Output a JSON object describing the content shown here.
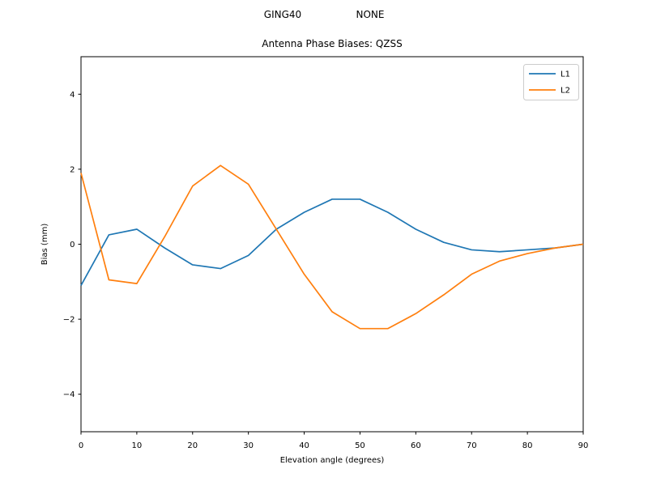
{
  "header": {
    "suptitle_left": "GING40",
    "suptitle_right": "NONE"
  },
  "chart_data": {
    "type": "line",
    "title": "Antenna Phase Biases: QZSS",
    "xlabel": "Elevation angle (degrees)",
    "ylabel": "Bias (mm)",
    "xlim": [
      0,
      90
    ],
    "ylim": [
      -5,
      5
    ],
    "xticks": [
      0,
      10,
      20,
      30,
      40,
      50,
      60,
      70,
      80,
      90
    ],
    "xtick_labels": [
      "0",
      "10",
      "20",
      "30",
      "40",
      "50",
      "60",
      "70",
      "80",
      "90"
    ],
    "yticks": [
      -4,
      -2,
      0,
      2,
      4
    ],
    "ytick_labels": [
      "−4",
      "−2",
      "0",
      "2",
      "4"
    ],
    "grid": false,
    "legend_position": "upper right",
    "x": [
      0,
      5,
      10,
      15,
      20,
      25,
      30,
      35,
      40,
      45,
      50,
      55,
      60,
      65,
      70,
      75,
      80,
      85,
      90
    ],
    "series": [
      {
        "name": "L1",
        "color": "#1f77b4",
        "values": [
          -1.1,
          0.25,
          0.4,
          -0.1,
          -0.55,
          -0.65,
          -0.3,
          0.4,
          0.85,
          1.2,
          1.2,
          0.85,
          0.4,
          0.05,
          -0.15,
          -0.2,
          -0.15,
          -0.1,
          0.0
        ]
      },
      {
        "name": "L2",
        "color": "#ff7f0e",
        "values": [
          1.9,
          -0.95,
          -1.05,
          0.2,
          1.55,
          2.1,
          1.6,
          0.4,
          -0.8,
          -1.8,
          -2.25,
          -2.25,
          -1.85,
          -1.35,
          -0.8,
          -0.45,
          -0.25,
          -0.1,
          0.0
        ]
      }
    ],
    "frame_color": "#000000",
    "legend_border_color": "#cccccc"
  }
}
